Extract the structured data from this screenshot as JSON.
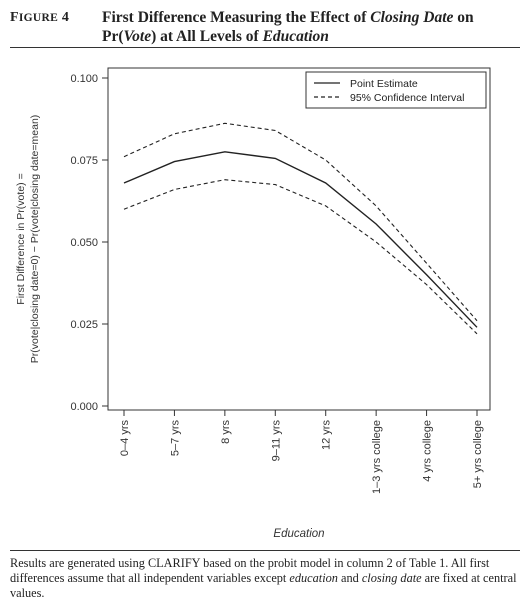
{
  "figure": {
    "label": "FIGURE 4",
    "title_parts": [
      {
        "text": "First Difference Measuring the Effect of ",
        "italic": false
      },
      {
        "text": "Closing Date",
        "italic": true
      },
      {
        "text": " on Pr(",
        "italic": false
      },
      {
        "text": "Vote",
        "italic": true
      },
      {
        "text": ") at All Levels of ",
        "italic": false
      },
      {
        "text": "Education",
        "italic": true
      }
    ]
  },
  "caption_parts": [
    {
      "text": "Results are generated using CLARIFY based on the probit model in column 2 of Table 1. All first differences assume that all independent variables except ",
      "italic": false
    },
    {
      "text": "education",
      "italic": true
    },
    {
      "text": " and ",
      "italic": false
    },
    {
      "text": "closing date",
      "italic": true
    },
    {
      "text": " are fixed at central values.",
      "italic": false
    }
  ],
  "chart_data": {
    "type": "line",
    "categories": [
      "0–4 yrs",
      "5–7 yrs",
      "8 yrs",
      "9–11 yrs",
      "12 yrs",
      "1–3 yrs college",
      "4 yrs college",
      "5+ yrs college"
    ],
    "series": [
      {
        "name": "Point Estimate",
        "style": "solid",
        "values": [
          0.068,
          0.0745,
          0.0775,
          0.0755,
          0.068,
          0.0555,
          0.04,
          0.024
        ]
      },
      {
        "name": "95% Confidence Interval",
        "style": "dashed",
        "values": [
          0.076,
          0.083,
          0.0862,
          0.084,
          0.075,
          0.061,
          0.0435,
          0.026
        ]
      },
      {
        "name": "",
        "style": "dashed",
        "values": [
          0.06,
          0.066,
          0.069,
          0.0675,
          0.061,
          0.05,
          0.037,
          0.022
        ]
      }
    ],
    "legend": [
      "Point Estimate",
      "95% Confidence Interval"
    ],
    "legend_position": "top-right",
    "xlabel": "Education",
    "ylabel_line1": "First Difference in Pr(vote) =",
    "ylabel_line2": "Pr(vote|closing date=0) − Pr(vote|closing date=mean)",
    "yticks": [
      "0.000",
      "0.025",
      "0.050",
      "0.075",
      "0.100"
    ],
    "ytick_values": [
      0,
      0.025,
      0.05,
      0.075,
      0.1
    ],
    "ylim": [
      0,
      0.1
    ],
    "grid": false
  }
}
